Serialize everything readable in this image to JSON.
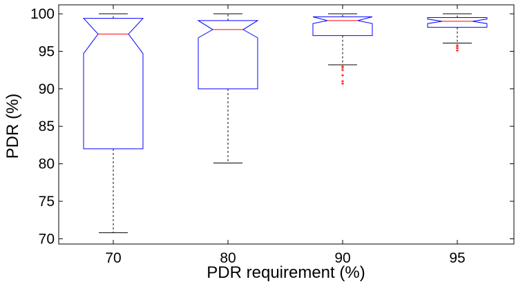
{
  "chart_data": {
    "type": "boxplot",
    "xlabel": "PDR requirement (%)",
    "ylabel": "PDR (%)",
    "ylim": [
      69.3,
      101.2
    ],
    "yticks": [
      70,
      75,
      80,
      85,
      90,
      95,
      100
    ],
    "categories": [
      "70",
      "80",
      "90",
      "95"
    ],
    "boxes": [
      {
        "category": "70",
        "whisker_low": 70.8,
        "q1": 82.0,
        "median": 97.3,
        "q3": 99.4,
        "whisker_high": 100.0,
        "notch_low": 94.7,
        "notch_high": 99.4,
        "outliers": []
      },
      {
        "category": "80",
        "whisker_low": 80.1,
        "q1": 90.0,
        "median": 97.9,
        "q3": 99.1,
        "whisker_high": 100.0,
        "notch_low": 96.8,
        "notch_high": 99.1,
        "outliers": []
      },
      {
        "category": "90",
        "whisker_low": 93.2,
        "q1": 97.1,
        "median": 99.1,
        "q3": 99.6,
        "whisker_high": 100.0,
        "notch_low": 98.7,
        "notch_high": 99.6,
        "outliers": [
          93.0,
          92.8,
          92.5,
          91.8,
          91.0,
          90.7
        ]
      },
      {
        "category": "95",
        "whisker_low": 96.1,
        "q1": 98.2,
        "median": 99.0,
        "q3": 99.5,
        "whisker_high": 100.0,
        "notch_low": 98.7,
        "notch_high": 99.3,
        "outliers": [
          95.8,
          95.6,
          95.4,
          95.1
        ]
      }
    ],
    "colors": {
      "box": "#0000ff",
      "median": "#ff0000",
      "whisker": "#000000",
      "outlier": "#ff0000",
      "axis": "#000000"
    },
    "grid": false
  }
}
